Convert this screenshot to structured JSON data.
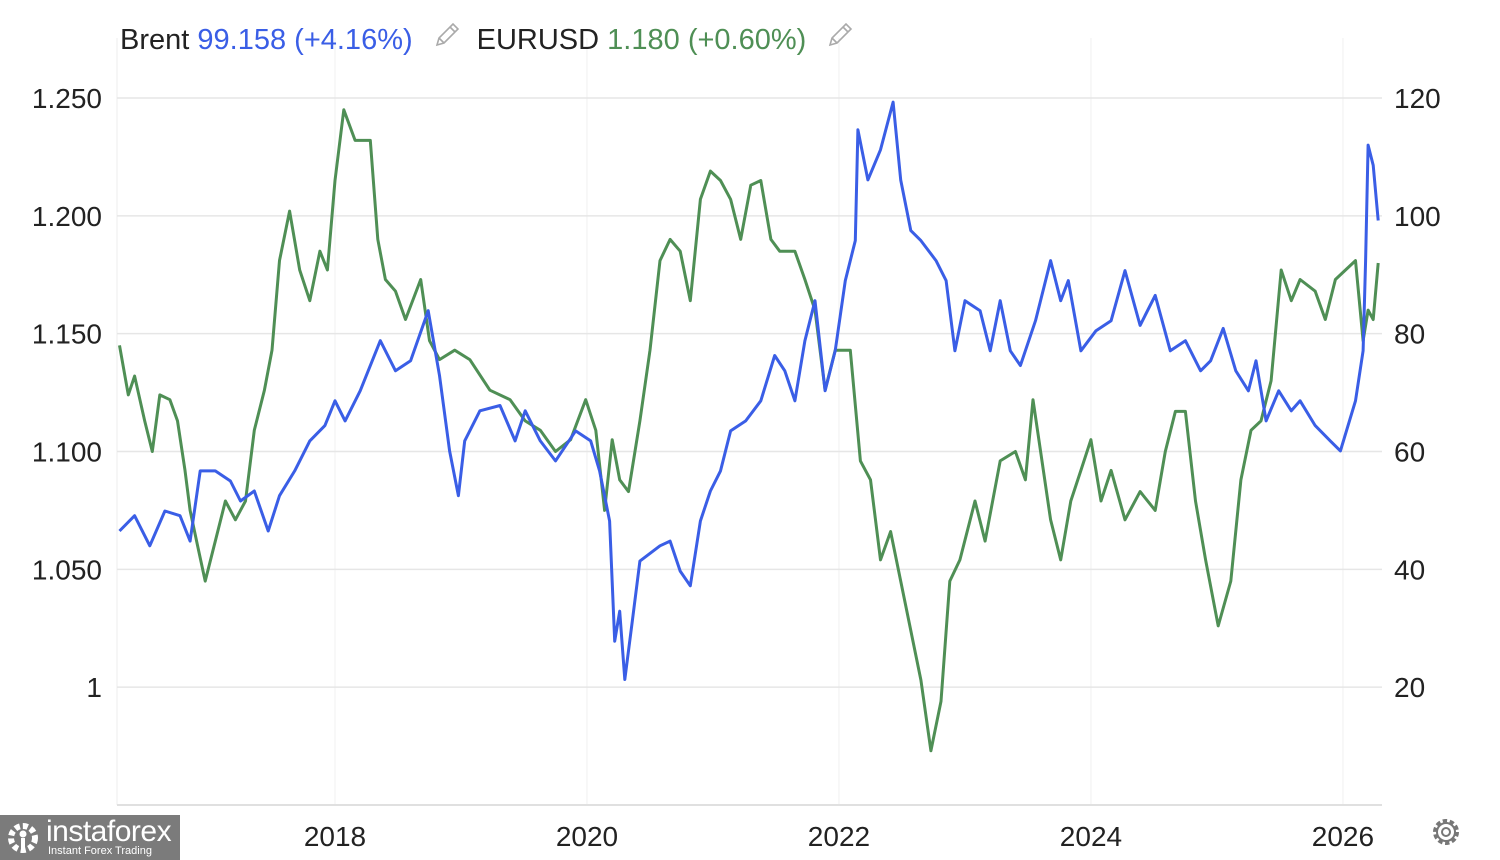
{
  "legend": [
    {
      "name": "Brent",
      "value": "99.158",
      "change": "(+4.16%)",
      "color": "#3a5ee6",
      "icon": "pencil-icon"
    },
    {
      "name": "EURUSD",
      "value": "1.180",
      "change": "(+0.60%)",
      "color": "#4f8f55",
      "icon": "pencil-icon"
    }
  ],
  "logo": {
    "brand": "instaforex",
    "tagline": "Instant Forex Trading"
  },
  "settings_icon": "gear-icon",
  "chart_data": {
    "type": "line",
    "title": "",
    "xlabel": "",
    "x_ticks": [
      "2018",
      "2020",
      "2022",
      "2024",
      "2026"
    ],
    "x_tick_values": [
      2018,
      2020,
      2022,
      2024,
      2026
    ],
    "xlim": [
      2016.27,
      2026.31
    ],
    "left_axis": {
      "ticks": [
        "1.250",
        "1.200",
        "1.150",
        "1.100",
        "1.050",
        "1"
      ],
      "tick_values": [
        1.25,
        1.2,
        1.15,
        1.1,
        1.05,
        1.0
      ],
      "ylim": [
        0.95,
        1.25
      ]
    },
    "right_axis": {
      "ticks": [
        "120",
        "100",
        "80",
        "60",
        "40",
        "20"
      ],
      "tick_values": [
        120,
        100,
        80,
        60,
        40,
        20
      ],
      "ylim": [
        0,
        120
      ]
    },
    "grid": true,
    "legend_position": "top-left",
    "series": [
      {
        "name": "Brent",
        "axis": "right",
        "color": "#3a5ee6",
        "x": [
          2016.29,
          2016.41,
          2016.53,
          2016.65,
          2016.77,
          2016.85,
          2016.93,
          2017.05,
          2017.17,
          2017.25,
          2017.36,
          2017.47,
          2017.56,
          2017.68,
          2017.8,
          2017.92,
          2018.0,
          2018.08,
          2018.2,
          2018.36,
          2018.48,
          2018.6,
          2018.74,
          2018.83,
          2018.91,
          2018.98,
          2019.03,
          2019.15,
          2019.31,
          2019.43,
          2019.51,
          2019.63,
          2019.75,
          2019.91,
          2020.03,
          2020.1,
          2020.18,
          2020.22,
          2020.26,
          2020.3,
          2020.36,
          2020.42,
          2020.58,
          2020.66,
          2020.74,
          2020.82,
          2020.9,
          2020.98,
          2021.06,
          2021.14,
          2021.26,
          2021.38,
          2021.49,
          2021.57,
          2021.65,
          2021.73,
          2021.81,
          2021.89,
          2021.97,
          2022.05,
          2022.13,
          2022.15,
          2022.23,
          2022.33,
          2022.43,
          2022.49,
          2022.57,
          2022.65,
          2022.77,
          2022.85,
          2022.92,
          2023.0,
          2023.12,
          2023.2,
          2023.28,
          2023.36,
          2023.44,
          2023.56,
          2023.68,
          2023.76,
          2023.82,
          2023.92,
          2024.04,
          2024.16,
          2024.27,
          2024.39,
          2024.51,
          2024.63,
          2024.75,
          2024.87,
          2024.95,
          2025.05,
          2025.15,
          2025.25,
          2025.31,
          2025.39,
          2025.49,
          2025.59,
          2025.66,
          2025.78,
          2025.9,
          2025.98,
          2026.1,
          2026.16,
          2026.18,
          2026.2,
          2026.24,
          2026.28
        ],
        "values": [
          46.5,
          49.1,
          44.0,
          49.9,
          49.1,
          44.8,
          56.7,
          56.7,
          55.0,
          51.6,
          53.3,
          46.5,
          52.5,
          56.7,
          61.8,
          64.4,
          68.6,
          65.2,
          70.3,
          78.8,
          73.7,
          75.4,
          83.9,
          72.9,
          60.1,
          52.5,
          61.8,
          66.9,
          67.8,
          61.8,
          66.9,
          61.8,
          58.4,
          63.5,
          61.8,
          56.7,
          48.2,
          27.8,
          32.9,
          21.3,
          31.2,
          41.4,
          44.0,
          44.8,
          39.7,
          37.2,
          48.2,
          53.3,
          56.7,
          63.5,
          65.2,
          68.6,
          76.3,
          73.7,
          68.6,
          78.8,
          85.6,
          70.3,
          77.1,
          89.0,
          95.8,
          114.6,
          106.1,
          111.2,
          119.3,
          106.1,
          97.5,
          95.8,
          92.4,
          89.0,
          77.1,
          85.6,
          83.9,
          77.1,
          85.6,
          77.1,
          74.6,
          82.2,
          92.4,
          85.6,
          89.0,
          77.1,
          80.5,
          82.2,
          90.7,
          81.4,
          86.5,
          77.1,
          78.8,
          73.7,
          75.4,
          80.9,
          73.7,
          70.3,
          75.4,
          65.2,
          70.3,
          66.9,
          68.6,
          64.4,
          61.8,
          60.1,
          68.6,
          77.1,
          92.4,
          112.0,
          108.6,
          99.2
        ]
      },
      {
        "name": "EURUSD",
        "axis": "left",
        "color": "#4f8f55",
        "x": [
          2016.29,
          2016.36,
          2016.41,
          2016.49,
          2016.55,
          2016.61,
          2016.69,
          2016.75,
          2016.81,
          2016.85,
          2016.91,
          2016.97,
          2017.05,
          2017.13,
          2017.21,
          2017.29,
          2017.36,
          2017.44,
          2017.5,
          2017.56,
          2017.64,
          2017.72,
          2017.8,
          2017.88,
          2017.94,
          2018.0,
          2018.07,
          2018.16,
          2018.28,
          2018.34,
          2018.4,
          2018.48,
          2018.56,
          2018.68,
          2018.75,
          2018.83,
          2018.95,
          2019.07,
          2019.23,
          2019.39,
          2019.51,
          2019.63,
          2019.75,
          2019.87,
          2019.99,
          2020.07,
          2020.14,
          2020.2,
          2020.26,
          2020.33,
          2020.42,
          2020.5,
          2020.58,
          2020.66,
          2020.74,
          2020.82,
          2020.9,
          2020.98,
          2021.06,
          2021.14,
          2021.22,
          2021.3,
          2021.38,
          2021.46,
          2021.53,
          2021.65,
          2021.73,
          2021.81,
          2021.89,
          2021.97,
          2022.09,
          2022.17,
          2022.25,
          2022.33,
          2022.41,
          2022.49,
          2022.57,
          2022.65,
          2022.73,
          2022.81,
          2022.88,
          2022.96,
          2023.08,
          2023.16,
          2023.28,
          2023.4,
          2023.48,
          2023.54,
          2023.6,
          2023.68,
          2023.76,
          2023.84,
          2023.92,
          2024.0,
          2024.08,
          2024.16,
          2024.27,
          2024.39,
          2024.51,
          2024.59,
          2024.67,
          2024.75,
          2024.83,
          2024.91,
          2025.01,
          2025.11,
          2025.19,
          2025.27,
          2025.35,
          2025.43,
          2025.51,
          2025.59,
          2025.66,
          2025.78,
          2025.86,
          2025.94,
          2026.02,
          2026.1,
          2026.16,
          2026.2,
          2026.24,
          2026.28
        ],
        "values": [
          1.145,
          1.124,
          1.132,
          1.113,
          1.1,
          1.124,
          1.122,
          1.113,
          1.092,
          1.075,
          1.06,
          1.045,
          1.062,
          1.079,
          1.071,
          1.079,
          1.109,
          1.126,
          1.143,
          1.181,
          1.202,
          1.177,
          1.164,
          1.185,
          1.177,
          1.215,
          1.245,
          1.232,
          1.232,
          1.19,
          1.173,
          1.168,
          1.156,
          1.173,
          1.147,
          1.139,
          1.143,
          1.139,
          1.126,
          1.122,
          1.113,
          1.109,
          1.1,
          1.105,
          1.122,
          1.109,
          1.075,
          1.105,
          1.088,
          1.083,
          1.113,
          1.143,
          1.181,
          1.19,
          1.185,
          1.164,
          1.207,
          1.219,
          1.215,
          1.207,
          1.19,
          1.213,
          1.215,
          1.19,
          1.185,
          1.185,
          1.173,
          1.16,
          1.126,
          1.143,
          1.143,
          1.096,
          1.088,
          1.054,
          1.066,
          1.045,
          1.024,
          1.003,
          0.973,
          0.994,
          1.045,
          1.054,
          1.079,
          1.062,
          1.096,
          1.1,
          1.088,
          1.122,
          1.1,
          1.071,
          1.054,
          1.079,
          1.092,
          1.105,
          1.079,
          1.092,
          1.071,
          1.083,
          1.075,
          1.1,
          1.117,
          1.117,
          1.079,
          1.054,
          1.026,
          1.045,
          1.088,
          1.109,
          1.113,
          1.13,
          1.177,
          1.164,
          1.173,
          1.168,
          1.156,
          1.173,
          1.177,
          1.181,
          1.147,
          1.16,
          1.156,
          1.18
        ]
      }
    ]
  }
}
